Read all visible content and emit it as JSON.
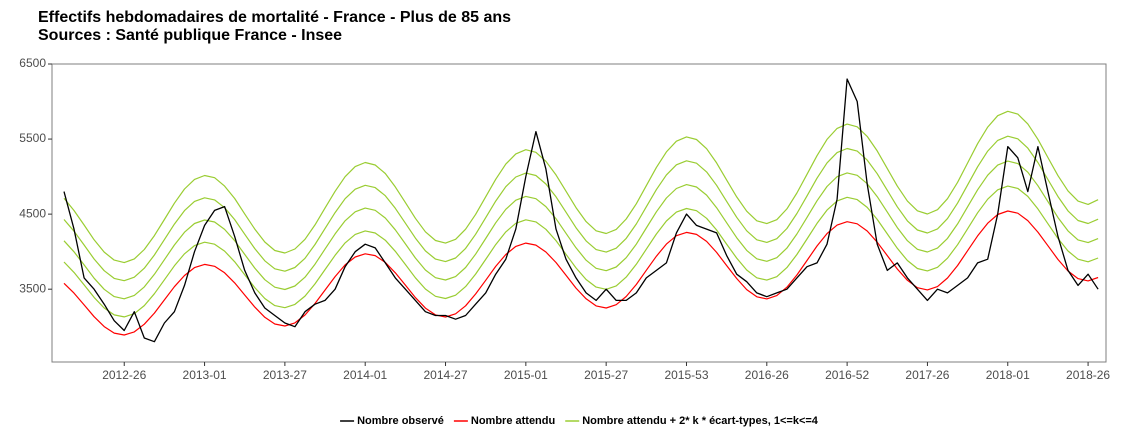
{
  "chart_data": {
    "type": "line",
    "title": "Effectifs hebdomadaires de mortalité  - France - Plus de 85 ans",
    "subtitle": " Sources : Santé publique France - Insee",
    "categories": [
      null,
      null,
      null,
      null,
      null,
      null,
      "2012-26",
      null,
      null,
      null,
      null,
      null,
      null,
      null,
      "2013-01",
      null,
      null,
      null,
      null,
      null,
      null,
      null,
      "2013-27",
      null,
      null,
      null,
      null,
      null,
      null,
      null,
      "2014-01",
      null,
      null,
      null,
      null,
      null,
      null,
      null,
      "2014-27",
      null,
      null,
      null,
      null,
      null,
      null,
      null,
      "2015-01",
      null,
      null,
      null,
      null,
      null,
      null,
      null,
      "2015-27",
      null,
      null,
      null,
      null,
      null,
      null,
      null,
      "2015-53",
      null,
      null,
      null,
      null,
      null,
      null,
      null,
      "2016-26",
      null,
      null,
      null,
      null,
      null,
      null,
      null,
      "2016-52",
      null,
      null,
      null,
      null,
      null,
      null,
      null,
      "2017-26",
      null,
      null,
      null,
      null,
      null,
      null,
      null,
      "2018-01",
      null,
      null,
      null,
      null,
      null,
      null,
      null,
      "2018-26",
      null
    ],
    "ylim": [
      2530,
      6500
    ],
    "yticks": [
      3500,
      4500,
      5500,
      6500
    ],
    "grid": false,
    "legend": "bottom",
    "series": [
      {
        "name": "Nombre observé",
        "color": "#000000",
        "values": [
          4800,
          4300,
          3650,
          3500,
          3300,
          3080,
          2950,
          3200,
          2850,
          2800,
          3050,
          3200,
          3550,
          4000,
          4350,
          4550,
          4600,
          4200,
          3750,
          3450,
          3250,
          3150,
          3050,
          3000,
          3200,
          3300,
          3350,
          3500,
          3800,
          4000,
          4100,
          4050,
          3850,
          3650,
          3500,
          3350,
          3200,
          3150,
          3150,
          3100,
          3150,
          3300,
          3450,
          3700,
          3900,
          4300,
          5000,
          5600,
          5100,
          4300,
          3900,
          3650,
          3450,
          3350,
          3500,
          3350,
          3350,
          3450,
          3650,
          3750,
          3850,
          4250,
          4500,
          4350,
          4300,
          4250,
          3950,
          3700,
          3600,
          3450,
          3400,
          3450,
          3500,
          3650,
          3800,
          3850,
          4100,
          4700,
          6300,
          6000,
          4900,
          4100,
          3750,
          3850,
          3650,
          3500,
          3350,
          3500,
          3450,
          3550,
          3650,
          3850,
          3900,
          4500,
          5400,
          5250,
          4800,
          5400,
          4800,
          4200,
          3750,
          3550,
          3700,
          3500
        ]
      },
      {
        "name": "Nombre attendu",
        "color": "#ff0000",
        "values": [
          3579,
          3448,
          3291,
          3134,
          3002,
          2915,
          2890,
          2931,
          3033,
          3182,
          3357,
          3533,
          3683,
          3787,
          3830,
          3805,
          3718,
          3584,
          3423,
          3261,
          3125,
          3036,
          3010,
          3051,
          3156,
          3309,
          3488,
          3668,
          3823,
          3929,
          3972,
          3947,
          3857,
          3719,
          3554,
          3388,
          3248,
          3157,
          3130,
          3172,
          3279,
          3436,
          3619,
          3804,
          3962,
          4070,
          4114,
          4088,
          3996,
          3855,
          3685,
          3515,
          3372,
          3278,
          3250,
          3293,
          3403,
          3562,
          3751,
          3939,
          4101,
          4212,
          4257,
          4230,
          4136,
          3990,
          3816,
          3642,
          3495,
          3399,
          3370,
          3414,
          3526,
          3689,
          3882,
          4075,
          4240,
          4354,
          4399,
          4371,
          4275,
          4126,
          3947,
          3769,
          3618,
          3520,
          3490,
          3535,
          3649,
          3816,
          4013,
          4210,
          4379,
          4495,
          4542,
          4513,
          4414,
          4261,
          4079,
          3896,
          3742,
          3641,
          3610,
          3656
        ]
      },
      {
        "name": "Nombre attendu + 2* k * écart-types, 1<=k<=4",
        "color": "#9acd32",
        "values": [
          3862,
          3723,
          3557,
          3390,
          3250,
          3158,
          3131,
          3174,
          3282,
          3440,
          3625,
          3811,
          3971,
          4081,
          4126,
          4100,
          4007,
          3865,
          3693,
          3521,
          3376,
          3281,
          3253,
          3297,
          3408,
          3571,
          3761,
          3952,
          4117,
          4230,
          4276,
          4249,
          4153,
          4005,
          3829,
          3652,
          3502,
          3405,
          3376,
          3420,
          3534,
          3701,
          3897,
          4094,
          4263,
          4378,
          4425,
          4397,
          4298,
          4147,
          3965,
          3783,
          3629,
          3528,
          3498,
          3544,
          3661,
          3831,
          4033,
          4235,
          4408,
          4527,
          4575,
          4546,
          4445,
          4288,
          4101,
          3914,
          3756,
          3652,
          3621,
          3667,
          3787,
          3962,
          4169,
          4376,
          4554,
          4676,
          4724,
          4694,
          4590,
          4430,
          4237,
          4045,
          3882,
          3776,
          3743,
          3791,
          3913,
          4093,
          4305,
          4517,
          4699,
          4824,
          4874,
          4843,
          4736,
          4570,
          4373,
          4175,
          4009,
          3899,
          3865,
          3915
        ]
      },
      {
        "name": "Nombre attendu + 2* k * écart-types, 1<=k<=4",
        "color": "#9acd32",
        "values": [
          4145,
          3998,
          3823,
          3646,
          3498,
          3401,
          3372,
          3417,
          3531,
          3698,
          3893,
          4089,
          4259,
          4375,
          4422,
          4395,
          4296,
          4146,
          3963,
          3781,
          3627,
          3526,
          3496,
          3543,
          3660,
          3833,
          4034,
          4236,
          4411,
          4531,
          4580,
          4551,
          4449,
          4291,
          4104,
          3916,
          3756,
          3653,
          3622,
          3668,
          3789,
          3966,
          4175,
          4384,
          4564,
          4686,
          4736,
          4706,
          4600,
          4439,
          4245,
          4051,
          3886,
          3778,
          3746,
          3795,
          3919,
          4100,
          4315,
          4531,
          4715,
          4842,
          4893,
          4862,
          4754,
          4586,
          4386,
          4186,
          4017,
          3905,
          3872,
          3920,
          4048,
          4235,
          4456,
          4677,
          4868,
          4998,
          5049,
          5017,
          4905,
          4734,
          4527,
          4321,
          4146,
          4032,
          3996,
          4047,
          4177,
          4370,
          4597,
          4824,
          5019,
          5153,
          5206,
          5173,
          5058,
          4879,
          4667,
          4454,
          4276,
          4157,
          4120,
          4174
        ]
      },
      {
        "name": "Nombre attendu + 2* k * écart-types, 1<=k<=4",
        "color": "#9acd32",
        "values": [
          4428,
          4273,
          4089,
          3902,
          3746,
          3644,
          3613,
          3660,
          3780,
          3956,
          4161,
          4367,
          4547,
          4669,
          4718,
          4690,
          4585,
          4427,
          4233,
          4041,
          3878,
          3771,
          3739,
          3789,
          3912,
          4095,
          4307,
          4520,
          4705,
          4832,
          4884,
          4853,
          4745,
          4577,
          4379,
          4180,
          4010,
          3901,
          3868,
          3916,
          4044,
          4231,
          4453,
          4674,
          4865,
          4994,
          5047,
          5015,
          4902,
          4731,
          4525,
          4319,
          4143,
          4028,
          3994,
          4046,
          4177,
          4369,
          4597,
          4827,
          5022,
          5157,
          5211,
          5178,
          5063,
          4884,
          4671,
          4458,
          4278,
          4158,
          4123,
          4173,
          4309,
          4508,
          4743,
          4978,
          5182,
          5320,
          5374,
          5340,
          5220,
          5038,
          4817,
          4597,
          4410,
          4288,
          4249,
          4303,
          4441,
          4647,
          4889,
          5131,
          5339,
          5482,
          5538,
          5503,
          5380,
          5188,
          4961,
          4733,
          4543,
          4415,
          4375,
          4433
        ]
      },
      {
        "name": "Nombre attendu + 2* k * écart-types, 1<=k<=4",
        "color": "#9acd32",
        "values": [
          4711,
          4548,
          4355,
          4158,
          3994,
          3887,
          3854,
          3903,
          4029,
          4214,
          4429,
          4645,
          4835,
          4963,
          5014,
          4985,
          4874,
          4708,
          4503,
          4301,
          4129,
          4016,
          3982,
          4035,
          4164,
          4357,
          4580,
          4804,
          4999,
          5133,
          5188,
          5155,
          5041,
          4863,
          4654,
          4444,
          4264,
          4149,
          4114,
          4164,
          4299,
          4496,
          4731,
          4964,
          5166,
          5302,
          5358,
          5324,
          5204,
          5023,
          4805,
          4587,
          4400,
          4278,
          4242,
          4297,
          4435,
          4638,
          4879,
          5123,
          5329,
          5472,
          5529,
          5494,
          5372,
          5182,
          4956,
          4730,
          4539,
          4411,
          4374,
          4426,
          4570,
          4781,
          5030,
          5279,
          5496,
          5642,
          5699,
          5663,
          5535,
          5342,
          5107,
          4873,
          4674,
          4544,
          4502,
          4559,
          4705,
          4924,
          5181,
          5438,
          5659,
          5811,
          5870,
          5833,
          5702,
          5497,
          5255,
          5012,
          4810,
          4673,
          4630,
          4692
        ]
      }
    ]
  }
}
